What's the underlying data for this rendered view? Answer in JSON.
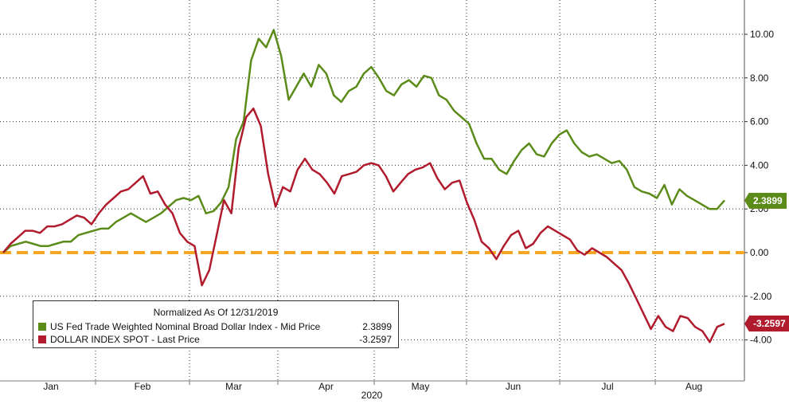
{
  "chart_data": {
    "type": "line",
    "title": "Normalized As Of 12/31/2019",
    "xlabel": "2020",
    "ylabel": "",
    "x_tick_labels": [
      "Jan",
      "Feb",
      "Mar",
      "Apr",
      "May",
      "Jun",
      "Jul",
      "Aug"
    ],
    "y_tick_labels": [
      "-4.00",
      "-2.00",
      "0.00",
      "2.00",
      "4.00",
      "6.00",
      "8.00",
      "10.00"
    ],
    "ylim": [
      -5.6,
      11.6
    ],
    "grid": true,
    "legend_position": "bottom-left",
    "reference_line": {
      "y": 0.0,
      "color": "#F5A623",
      "style": "dashed"
    },
    "series": [
      {
        "name": "US Fed Trade Weighted Nominal Broad Dollar Index - Mid Price",
        "value_label": "2.3899",
        "color": "#5B8C1A",
        "values": [
          0,
          0.3,
          0.4,
          0.5,
          0.4,
          0.3,
          0.3,
          0.4,
          0.5,
          0.5,
          0.8,
          0.9,
          1.0,
          1.1,
          1.1,
          1.4,
          1.6,
          1.8,
          1.6,
          1.4,
          1.6,
          1.8,
          2.1,
          2.4,
          2.5,
          2.4,
          2.6,
          1.8,
          1.9,
          2.3,
          3.0,
          5.2,
          6.0,
          8.8,
          9.8,
          9.4,
          10.2,
          9.0,
          7.0,
          7.6,
          8.2,
          7.6,
          8.6,
          8.2,
          7.2,
          6.9,
          7.4,
          7.6,
          8.2,
          8.5,
          8.0,
          7.4,
          7.2,
          7.7,
          7.9,
          7.6,
          8.1,
          8.0,
          7.2,
          7.0,
          6.5,
          6.2,
          5.9,
          5.0,
          4.3,
          4.3,
          3.8,
          3.6,
          4.2,
          4.7,
          5.0,
          4.5,
          4.4,
          5.0,
          5.4,
          5.6,
          5.0,
          4.6,
          4.4,
          4.5,
          4.3,
          4.1,
          4.2,
          3.8,
          3.0,
          2.8,
          2.7,
          2.5,
          3.1,
          2.2,
          2.9,
          2.6,
          2.4,
          2.2,
          2.0,
          2.0,
          2.3899
        ]
      },
      {
        "name": "DOLLAR INDEX SPOT - Last Price",
        "value_label": "-3.2597",
        "color": "#B01C2E",
        "values": [
          0,
          0.4,
          0.7,
          1.0,
          1.0,
          0.9,
          1.2,
          1.2,
          1.3,
          1.5,
          1.7,
          1.6,
          1.3,
          1.8,
          2.2,
          2.5,
          2.8,
          2.9,
          3.2,
          3.5,
          2.7,
          2.8,
          2.2,
          1.8,
          0.9,
          0.5,
          0.3,
          -1.5,
          -0.8,
          0.8,
          2.4,
          1.8,
          4.8,
          6.2,
          6.6,
          5.8,
          3.6,
          2.1,
          3.0,
          2.8,
          3.8,
          4.3,
          3.8,
          3.6,
          3.2,
          2.7,
          3.5,
          3.6,
          3.7,
          4.0,
          4.1,
          4.0,
          3.5,
          2.8,
          3.2,
          3.6,
          3.8,
          3.9,
          4.1,
          3.4,
          2.9,
          3.2,
          3.3,
          2.3,
          1.5,
          0.5,
          0.2,
          -0.3,
          0.3,
          0.8,
          1.0,
          0.2,
          0.4,
          0.9,
          1.2,
          1.0,
          0.8,
          0.6,
          0.1,
          -0.1,
          0.2,
          0.0,
          -0.2,
          -0.5,
          -0.8,
          -1.4,
          -2.1,
          -2.8,
          -3.5,
          -2.9,
          -3.4,
          -3.6,
          -2.9,
          -3.0,
          -3.4,
          -3.6,
          -4.1,
          -3.4,
          -3.2597
        ]
      }
    ]
  }
}
